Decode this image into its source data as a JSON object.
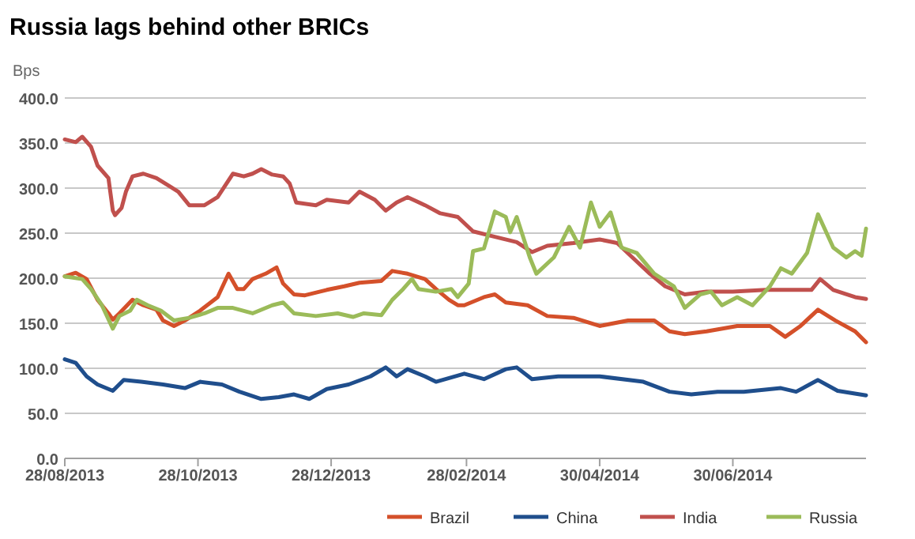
{
  "chart_data": {
    "type": "line",
    "title": "Russia lags behind other BRICs",
    "ylabel": "Bps",
    "xlim": [
      "2013-08-28",
      "2014-08-30"
    ],
    "xticks": [
      {
        "value": "2013-08-28",
        "label": "28/08/2013"
      },
      {
        "value": "2013-10-28",
        "label": "28/10/2013"
      },
      {
        "value": "2013-12-28",
        "label": "28/12/2013"
      },
      {
        "value": "2014-02-28",
        "label": "28/02/2014"
      },
      {
        "value": "2014-04-30",
        "label": "30/04/2014"
      },
      {
        "value": "2014-06-30",
        "label": "30/06/2014"
      }
    ],
    "ylim": [
      0,
      400
    ],
    "yticks": [
      {
        "value": 0,
        "label": "0.0"
      },
      {
        "value": 50,
        "label": "50.0"
      },
      {
        "value": 100,
        "label": "100.0"
      },
      {
        "value": 150,
        "label": "150.0"
      },
      {
        "value": 200,
        "label": "200.0"
      },
      {
        "value": 250,
        "label": "250.0"
      },
      {
        "value": 300,
        "label": "300.0"
      },
      {
        "value": 350,
        "label": "350.0"
      },
      {
        "value": 400,
        "label": "400.0"
      }
    ],
    "grid": "y",
    "legend": "bottom",
    "line_style": "solid",
    "marker": "none",
    "series": [
      {
        "name": "Brazil",
        "color": "#d4502a",
        "x": [
          "2013-08-28",
          "2013-09-02",
          "2013-09-07",
          "2013-09-12",
          "2013-09-17",
          "2013-09-19",
          "2013-09-22",
          "2013-09-28",
          "2013-10-03",
          "2013-10-09",
          "2013-10-12",
          "2013-10-17",
          "2013-10-22",
          "2013-10-29",
          "2013-11-06",
          "2013-11-11",
          "2013-11-15",
          "2013-11-18",
          "2013-11-22",
          "2013-11-28",
          "2013-12-03",
          "2013-12-06",
          "2013-12-11",
          "2013-12-16",
          "2013-12-26",
          "2014-01-03",
          "2014-01-10",
          "2014-01-20",
          "2014-01-25",
          "2014-02-01",
          "2014-02-09",
          "2014-02-14",
          "2014-02-20",
          "2014-02-24",
          "2014-02-27",
          "2014-03-08",
          "2014-03-13",
          "2014-03-18",
          "2014-03-28",
          "2014-04-06",
          "2014-04-18",
          "2014-04-30",
          "2014-05-13",
          "2014-05-25",
          "2014-06-01",
          "2014-06-08",
          "2014-06-18",
          "2014-07-02",
          "2014-07-17",
          "2014-07-24",
          "2014-07-31",
          "2014-08-08",
          "2014-08-16",
          "2014-08-25",
          "2014-08-30"
        ],
        "values": [
          202,
          206,
          199,
          176,
          161,
          154,
          161,
          176,
          170,
          165,
          153,
          147,
          153,
          164,
          179,
          205,
          188,
          188,
          199,
          205,
          212,
          194,
          182,
          181,
          187,
          191,
          195,
          197,
          208,
          205,
          199,
          188,
          176,
          170,
          170,
          179,
          182,
          173,
          170,
          158,
          156,
          147,
          153,
          153,
          141,
          138,
          141,
          147,
          147,
          135,
          147,
          165,
          153,
          141,
          129
        ]
      },
      {
        "name": "China",
        "color": "#1f4e8c",
        "x": [
          "2013-08-28",
          "2013-09-02",
          "2013-09-07",
          "2013-09-12",
          "2013-09-19",
          "2013-09-24",
          "2013-10-02",
          "2013-10-12",
          "2013-10-22",
          "2013-10-29",
          "2013-11-08",
          "2013-11-16",
          "2013-11-26",
          "2013-12-04",
          "2013-12-11",
          "2013-12-18",
          "2013-12-26",
          "2014-01-05",
          "2014-01-15",
          "2014-01-22",
          "2014-01-27",
          "2014-02-01",
          "2014-02-09",
          "2014-02-14",
          "2014-02-27",
          "2014-03-08",
          "2014-03-18",
          "2014-03-23",
          "2014-03-30",
          "2014-04-11",
          "2014-04-30",
          "2014-05-20",
          "2014-06-01",
          "2014-06-11",
          "2014-06-23",
          "2014-07-05",
          "2014-07-22",
          "2014-07-29",
          "2014-08-08",
          "2014-08-17",
          "2014-08-30"
        ],
        "values": [
          110,
          106,
          91,
          82,
          75,
          87,
          85,
          82,
          78,
          85,
          82,
          74,
          66,
          68,
          71,
          66,
          77,
          82,
          91,
          101,
          91,
          99,
          91,
          85,
          94,
          88,
          99,
          101,
          88,
          91,
          91,
          85,
          74,
          71,
          74,
          74,
          78,
          74,
          87,
          75,
          70
        ]
      },
      {
        "name": "India",
        "color": "#c0504d",
        "x": [
          "2013-08-28",
          "2013-09-02",
          "2013-09-05",
          "2013-09-09",
          "2013-09-12",
          "2013-09-17",
          "2013-09-19",
          "2013-09-20",
          "2013-09-23",
          "2013-09-25",
          "2013-09-28",
          "2013-10-03",
          "2013-10-09",
          "2013-10-15",
          "2013-10-19",
          "2013-10-24",
          "2013-10-31",
          "2013-11-06",
          "2013-11-13",
          "2013-11-18",
          "2013-11-22",
          "2013-11-26",
          "2013-12-01",
          "2013-12-06",
          "2013-12-09",
          "2013-12-12",
          "2013-12-21",
          "2013-12-26",
          "2014-01-05",
          "2014-01-10",
          "2014-01-17",
          "2014-01-22",
          "2014-01-27",
          "2014-02-01",
          "2014-02-09",
          "2014-02-16",
          "2014-02-24",
          "2014-03-03",
          "2014-03-13",
          "2014-03-23",
          "2014-03-30",
          "2014-04-06",
          "2014-04-18",
          "2014-04-30",
          "2014-05-08",
          "2014-05-15",
          "2014-05-23",
          "2014-05-30",
          "2014-06-08",
          "2014-06-18",
          "2014-06-30",
          "2014-07-15",
          "2014-07-27",
          "2014-08-05",
          "2014-08-09",
          "2014-08-15",
          "2014-08-25",
          "2014-08-30"
        ],
        "values": [
          354,
          351,
          357,
          346,
          325,
          311,
          275,
          270,
          278,
          296,
          313,
          316,
          311,
          302,
          296,
          281,
          281,
          290,
          316,
          313,
          316,
          321,
          315,
          313,
          305,
          284,
          281,
          287,
          284,
          296,
          287,
          275,
          284,
          290,
          281,
          272,
          268,
          252,
          246,
          240,
          229,
          236,
          239,
          243,
          239,
          223,
          205,
          191,
          182,
          185,
          185,
          187,
          187,
          187,
          199,
          187,
          179,
          177
        ]
      },
      {
        "name": "Russia",
        "color": "#9bbb59",
        "x": [
          "2013-08-28",
          "2013-09-05",
          "2013-09-09",
          "2013-09-14",
          "2013-09-19",
          "2013-09-22",
          "2013-09-27",
          "2013-09-30",
          "2013-10-05",
          "2013-10-11",
          "2013-10-17",
          "2013-10-24",
          "2013-10-31",
          "2013-11-06",
          "2013-11-13",
          "2013-11-22",
          "2013-12-01",
          "2013-12-06",
          "2013-12-11",
          "2013-12-21",
          "2013-12-31",
          "2014-01-07",
          "2014-01-12",
          "2014-01-20",
          "2014-01-25",
          "2014-01-30",
          "2014-02-03",
          "2014-02-06",
          "2014-02-14",
          "2014-02-21",
          "2014-02-24",
          "2014-03-01",
          "2014-03-03",
          "2014-03-08",
          "2014-03-13",
          "2014-03-18",
          "2014-03-20",
          "2014-03-23",
          "2014-03-29",
          "2014-04-01",
          "2014-04-09",
          "2014-04-16",
          "2014-04-21",
          "2014-04-26",
          "2014-04-30",
          "2014-05-05",
          "2014-05-10",
          "2014-05-17",
          "2014-05-25",
          "2014-06-03",
          "2014-06-08",
          "2014-06-15",
          "2014-06-20",
          "2014-06-25",
          "2014-07-02",
          "2014-07-09",
          "2014-07-17",
          "2014-07-22",
          "2014-07-27",
          "2014-08-03",
          "2014-08-08",
          "2014-08-15",
          "2014-08-21",
          "2014-08-25",
          "2014-08-28",
          "2014-08-30"
        ],
        "values": [
          202,
          199,
          188,
          170,
          144,
          158,
          164,
          176,
          170,
          164,
          153,
          156,
          161,
          167,
          167,
          161,
          170,
          173,
          161,
          158,
          161,
          157,
          161,
          159,
          176,
          188,
          199,
          188,
          185,
          188,
          179,
          194,
          230,
          233,
          274,
          268,
          251,
          268,
          223,
          205,
          223,
          257,
          234,
          284,
          257,
          273,
          234,
          228,
          205,
          191,
          167,
          182,
          185,
          170,
          179,
          170,
          191,
          211,
          205,
          228,
          271,
          234,
          223,
          230,
          225,
          255
        ]
      }
    ]
  }
}
